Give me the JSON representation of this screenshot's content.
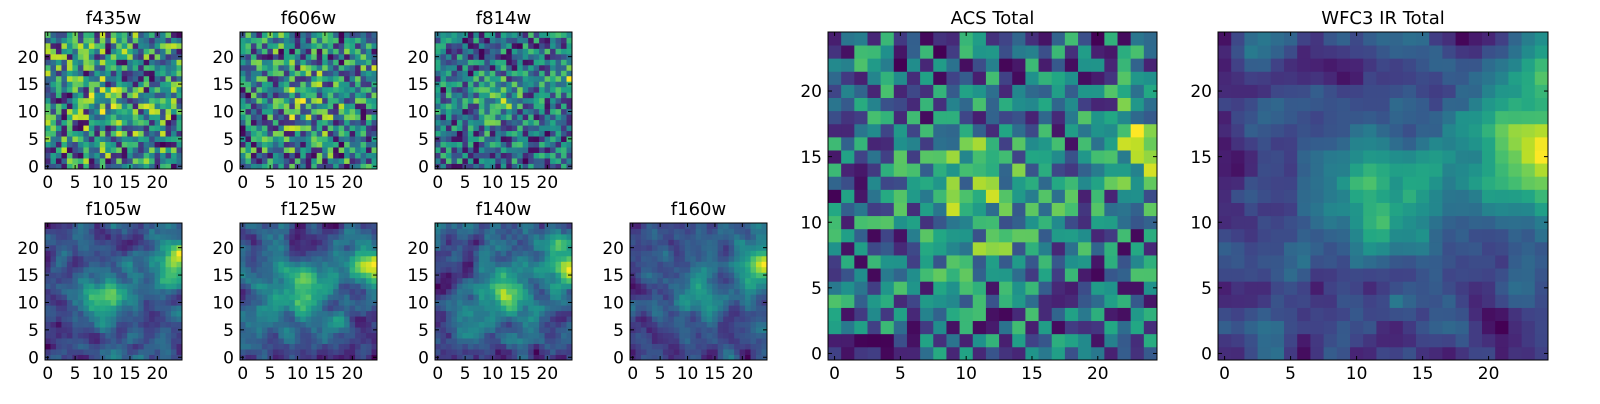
{
  "chart_data": [
    {
      "type": "heatmap",
      "title": "f435w",
      "size": 25,
      "xticks": [
        "0",
        "5",
        "10",
        "15",
        "20"
      ],
      "yticks": [
        "0",
        "5",
        "10",
        "15",
        "20"
      ],
      "seed": 11,
      "features": [
        {
          "x": 12,
          "y": 12,
          "r": 4,
          "a": 0.15
        }
      ],
      "noise": 0.7,
      "smooth": 0
    },
    {
      "type": "heatmap",
      "title": "f606w",
      "size": 25,
      "xticks": [
        "0",
        "5",
        "10",
        "15",
        "20"
      ],
      "yticks": [
        "0",
        "5",
        "10",
        "15",
        "20"
      ],
      "seed": 23,
      "features": [
        {
          "x": 11,
          "y": 12,
          "r": 4,
          "a": 0.25
        },
        {
          "x": 23,
          "y": 16,
          "r": 2,
          "a": 0.2
        }
      ],
      "noise": 0.65,
      "smooth": 0
    },
    {
      "type": "heatmap",
      "title": "f814w",
      "size": 25,
      "xticks": [
        "0",
        "5",
        "10",
        "15",
        "20"
      ],
      "yticks": [
        "0",
        "5",
        "10",
        "15",
        "20"
      ],
      "seed": 37,
      "features": [
        {
          "x": 11,
          "y": 12,
          "r": 3,
          "a": 0.35
        },
        {
          "x": 24,
          "y": 17,
          "r": 2.5,
          "a": 0.45
        }
      ],
      "noise": 0.55,
      "smooth": 0
    },
    {
      "type": "heatmap",
      "title": "f105w",
      "size": 25,
      "xticks": [
        "0",
        "5",
        "10",
        "15",
        "20"
      ],
      "yticks": [
        "0",
        "5",
        "10",
        "15",
        "20"
      ],
      "seed": 41,
      "features": [
        {
          "x": 11,
          "y": 11,
          "r": 3.5,
          "a": 0.45
        },
        {
          "x": 24,
          "y": 17,
          "r": 3,
          "a": 0.6
        }
      ],
      "noise": 0.5,
      "smooth": 1
    },
    {
      "type": "heatmap",
      "title": "f125w",
      "size": 25,
      "xticks": [
        "0",
        "5",
        "10",
        "15",
        "20"
      ],
      "yticks": [
        "0",
        "5",
        "10",
        "15",
        "20"
      ],
      "seed": 53,
      "features": [
        {
          "x": 11,
          "y": 12,
          "r": 3.5,
          "a": 0.4
        },
        {
          "x": 24,
          "y": 17,
          "r": 3,
          "a": 0.65
        }
      ],
      "noise": 0.5,
      "smooth": 1
    },
    {
      "type": "heatmap",
      "title": "f140w",
      "size": 25,
      "xticks": [
        "0",
        "5",
        "10",
        "15",
        "20"
      ],
      "yticks": [
        "0",
        "5",
        "10",
        "15",
        "20"
      ],
      "seed": 67,
      "features": [
        {
          "x": 12,
          "y": 12,
          "r": 3.5,
          "a": 0.4
        },
        {
          "x": 24,
          "y": 17,
          "r": 3,
          "a": 0.6
        }
      ],
      "noise": 0.5,
      "smooth": 1
    },
    {
      "type": "heatmap",
      "title": "f160w",
      "size": 25,
      "xticks": [
        "0",
        "5",
        "10",
        "15",
        "20"
      ],
      "yticks": [
        "0",
        "5",
        "10",
        "15",
        "20"
      ],
      "seed": 79,
      "features": [
        {
          "x": 12,
          "y": 12,
          "r": 3.5,
          "a": 0.35
        },
        {
          "x": 24,
          "y": 17,
          "r": 3,
          "a": 0.7
        }
      ],
      "noise": 0.5,
      "smooth": 1
    },
    {
      "type": "heatmap",
      "title": "ACS Total",
      "size": 25,
      "xticks": [
        "0",
        "5",
        "10",
        "15",
        "20"
      ],
      "yticks": [
        "0",
        "5",
        "10",
        "15",
        "20"
      ],
      "seed": 97,
      "features": [
        {
          "x": 11,
          "y": 12,
          "r": 3.5,
          "a": 0.35
        },
        {
          "x": 24,
          "y": 16,
          "r": 2.5,
          "a": 0.4
        }
      ],
      "noise": 0.55,
      "smooth": 0
    },
    {
      "type": "heatmap",
      "title": "WFC3 IR Total",
      "size": 25,
      "xticks": [
        "0",
        "5",
        "10",
        "15",
        "20"
      ],
      "yticks": [
        "0",
        "5",
        "10",
        "15",
        "20"
      ],
      "seed": 113,
      "features": [
        {
          "x": 12,
          "y": 12,
          "r": 3.5,
          "a": 0.4
        },
        {
          "x": 24,
          "y": 16.5,
          "r": 3.5,
          "a": 0.75
        }
      ],
      "noise": 0.45,
      "smooth": 1
    }
  ]
}
